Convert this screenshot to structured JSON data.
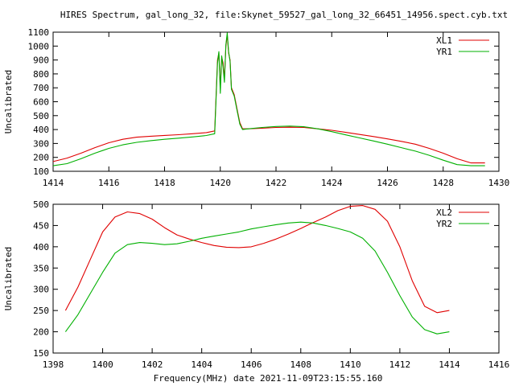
{
  "chart_data": [
    {
      "type": "line",
      "title": "HIRES Spectrum, gal_long_32, file:Skynet_59527_gal_long_32_66451_14956.spect.cyb.txt",
      "xlabel": "",
      "ylabel": "Uncalibrated",
      "xlim": [
        1414,
        1430
      ],
      "ylim": [
        100,
        1100
      ],
      "xticks": [
        1414,
        1416,
        1418,
        1420,
        1422,
        1424,
        1426,
        1428,
        1430
      ],
      "yticks": [
        100,
        200,
        300,
        400,
        500,
        600,
        700,
        800,
        900,
        1000,
        1100
      ],
      "grid": false,
      "legend_position": "top-right",
      "series": [
        {
          "name": "XL1",
          "color": "#e00000",
          "x": [
            1414.0,
            1414.5,
            1415.0,
            1415.5,
            1416.0,
            1416.5,
            1417.0,
            1417.5,
            1418.0,
            1418.5,
            1419.0,
            1419.5,
            1419.8,
            1419.9,
            1419.95,
            1420.0,
            1420.05,
            1420.1,
            1420.15,
            1420.2,
            1420.25,
            1420.3,
            1420.35,
            1420.4,
            1420.5,
            1420.6,
            1420.7,
            1420.8,
            1421.0,
            1421.5,
            1422.0,
            1422.5,
            1423.0,
            1423.5,
            1424.0,
            1424.5,
            1425.0,
            1425.5,
            1426.0,
            1426.5,
            1427.0,
            1427.5,
            1428.0,
            1428.5,
            1429.0,
            1429.5
          ],
          "values": [
            170,
            195,
            230,
            270,
            305,
            330,
            345,
            352,
            358,
            363,
            370,
            378,
            390,
            900,
            950,
            700,
            920,
            880,
            760,
            1000,
            1080,
            950,
            900,
            700,
            650,
            550,
            450,
            405,
            405,
            410,
            415,
            417,
            415,
            405,
            395,
            380,
            365,
            350,
            333,
            315,
            295,
            265,
            230,
            190,
            160,
            160
          ]
        },
        {
          "name": "YR1",
          "color": "#00b000",
          "x": [
            1414.0,
            1414.5,
            1415.0,
            1415.5,
            1416.0,
            1416.5,
            1417.0,
            1417.5,
            1418.0,
            1418.5,
            1419.0,
            1419.5,
            1419.8,
            1419.9,
            1419.95,
            1420.0,
            1420.05,
            1420.1,
            1420.15,
            1420.2,
            1420.25,
            1420.3,
            1420.35,
            1420.4,
            1420.5,
            1420.6,
            1420.7,
            1420.8,
            1421.0,
            1421.5,
            1422.0,
            1422.5,
            1423.0,
            1423.5,
            1424.0,
            1424.5,
            1425.0,
            1425.5,
            1426.0,
            1426.5,
            1427.0,
            1427.5,
            1428.0,
            1428.5,
            1429.0,
            1429.5
          ],
          "values": [
            140,
            155,
            190,
            230,
            265,
            290,
            308,
            320,
            330,
            338,
            347,
            357,
            370,
            880,
            960,
            660,
            930,
            850,
            740,
            1010,
            1095,
            960,
            890,
            690,
            640,
            540,
            440,
            400,
            405,
            415,
            422,
            425,
            420,
            405,
            385,
            362,
            340,
            318,
            295,
            270,
            245,
            215,
            180,
            148,
            140,
            140
          ]
        }
      ]
    },
    {
      "type": "line",
      "title": "",
      "xlabel": "Frequency(MHz) date 2021-11-09T23:15:55.160",
      "ylabel": "Uncalibrated",
      "xlim": [
        1398,
        1416
      ],
      "ylim": [
        150,
        500
      ],
      "xticks": [
        1398,
        1400,
        1402,
        1404,
        1406,
        1408,
        1410,
        1412,
        1414,
        1416
      ],
      "yticks": [
        150,
        200,
        250,
        300,
        350,
        400,
        450,
        500
      ],
      "grid": false,
      "legend_position": "top-right",
      "series": [
        {
          "name": "XL2",
          "color": "#e00000",
          "x": [
            1398.5,
            1399.0,
            1399.5,
            1400.0,
            1400.5,
            1401.0,
            1401.5,
            1402.0,
            1402.5,
            1403.0,
            1403.5,
            1404.0,
            1404.5,
            1405.0,
            1405.5,
            1406.0,
            1406.5,
            1407.0,
            1407.5,
            1408.0,
            1408.5,
            1409.0,
            1409.5,
            1410.0,
            1410.5,
            1411.0,
            1411.5,
            1412.0,
            1412.5,
            1413.0,
            1413.5,
            1414.0
          ],
          "values": [
            250,
            305,
            370,
            435,
            470,
            482,
            478,
            465,
            445,
            428,
            418,
            410,
            403,
            399,
            398,
            400,
            408,
            418,
            430,
            443,
            457,
            470,
            485,
            495,
            497,
            488,
            460,
            400,
            320,
            260,
            245,
            250
          ]
        },
        {
          "name": "YR2",
          "color": "#00b000",
          "x": [
            1398.5,
            1399.0,
            1399.5,
            1400.0,
            1400.5,
            1401.0,
            1401.5,
            1402.0,
            1402.5,
            1403.0,
            1403.5,
            1404.0,
            1404.5,
            1405.0,
            1405.5,
            1406.0,
            1406.5,
            1407.0,
            1407.5,
            1408.0,
            1408.5,
            1409.0,
            1409.5,
            1410.0,
            1410.5,
            1411.0,
            1411.5,
            1412.0,
            1412.5,
            1413.0,
            1413.5,
            1414.0
          ],
          "values": [
            200,
            240,
            290,
            340,
            385,
            405,
            410,
            408,
            405,
            407,
            413,
            420,
            425,
            430,
            435,
            442,
            447,
            452,
            456,
            458,
            456,
            450,
            443,
            435,
            420,
            390,
            340,
            285,
            235,
            205,
            195,
            200
          ]
        }
      ]
    }
  ]
}
